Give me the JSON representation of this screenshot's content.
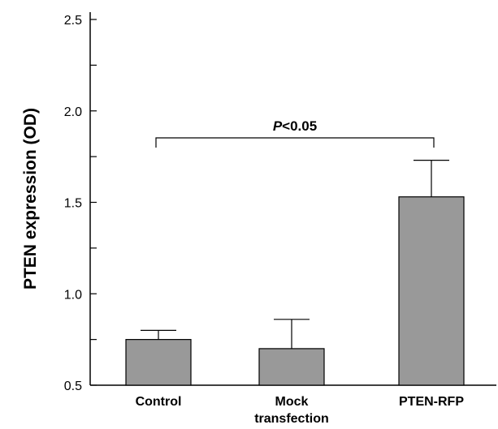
{
  "chart_data": {
    "type": "bar",
    "title": "",
    "xlabel": "",
    "ylabel": "PTEN expression (OD)",
    "ylim": [
      0.5,
      2.5
    ],
    "y_ticks": [
      "0.5",
      "1.0",
      "1.5",
      "2.0",
      "2.5"
    ],
    "categories": [
      "Control",
      "Mock transfection",
      "PTEN-RFP"
    ],
    "category_lines": [
      [
        "Control"
      ],
      [
        "Mock",
        "transfection"
      ],
      [
        "PTEN-RFP"
      ]
    ],
    "values": [
      0.75,
      0.7,
      1.53
    ],
    "errors": [
      0.05,
      0.16,
      0.2
    ],
    "bar_color": "#999999",
    "grid": false,
    "annotation": {
      "italic_part": "P",
      "rest": "<0.05",
      "from_category": "Control",
      "to_category": "PTEN-RFP"
    }
  }
}
